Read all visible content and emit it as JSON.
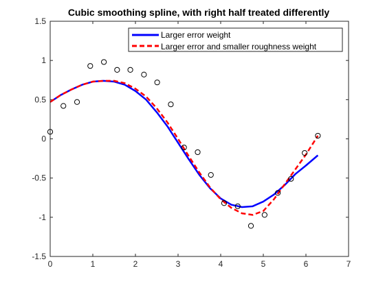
{
  "chart_data": {
    "type": "line",
    "title": "Cubic smoothing spline, with right half treated differently",
    "xlabel": "",
    "ylabel": "",
    "xlim": [
      0,
      7
    ],
    "ylim": [
      -1.5,
      1.5
    ],
    "xticks": [
      0,
      1,
      2,
      3,
      4,
      5,
      6,
      7
    ],
    "xtick_labels": [
      "0",
      "1",
      "2",
      "3",
      "4",
      "5",
      "6",
      "7"
    ],
    "yticks": [
      -1.5,
      -1,
      -0.5,
      0,
      0.5,
      1,
      1.5
    ],
    "ytick_labels": [
      "-1.5",
      "-1",
      "-0.5",
      "0",
      "0.5",
      "1",
      "1.5"
    ],
    "grid": false,
    "legend_position": "top-right",
    "data_points": {
      "marker": "circle-open",
      "x": [
        0.0,
        0.31,
        0.63,
        0.94,
        1.26,
        1.57,
        1.88,
        2.2,
        2.51,
        2.83,
        3.14,
        3.46,
        3.77,
        4.08,
        4.4,
        4.71,
        5.03,
        5.34,
        5.65,
        5.97,
        6.28
      ],
      "y": [
        0.09,
        0.42,
        0.47,
        0.93,
        0.98,
        0.88,
        0.88,
        0.82,
        0.72,
        0.44,
        -0.11,
        -0.17,
        -0.46,
        -0.82,
        -0.86,
        -1.11,
        -0.97,
        -0.69,
        -0.51,
        -0.18,
        0.04
      ]
    },
    "series": [
      {
        "name": "Larger error weight",
        "color": "#0000ff",
        "style": "solid",
        "x": [
          0.0,
          0.25,
          0.5,
          0.75,
          1.0,
          1.25,
          1.5,
          1.75,
          2.0,
          2.25,
          2.5,
          2.75,
          3.0,
          3.25,
          3.5,
          3.75,
          4.0,
          4.25,
          4.5,
          4.75,
          5.0,
          5.25,
          5.5,
          5.75,
          6.0,
          6.28
        ],
        "y": [
          0.47,
          0.56,
          0.63,
          0.69,
          0.73,
          0.74,
          0.73,
          0.69,
          0.61,
          0.5,
          0.34,
          0.16,
          -0.05,
          -0.26,
          -0.46,
          -0.63,
          -0.76,
          -0.84,
          -0.87,
          -0.86,
          -0.8,
          -0.71,
          -0.59,
          -0.45,
          -0.34,
          -0.21
        ]
      },
      {
        "name": "Larger error and smaller roughness weight",
        "color": "#ff0000",
        "style": "dashed",
        "x": [
          0.0,
          0.25,
          0.5,
          0.75,
          1.0,
          1.25,
          1.5,
          1.75,
          2.0,
          2.25,
          2.5,
          2.75,
          3.0,
          3.25,
          3.5,
          3.75,
          4.0,
          4.25,
          4.5,
          4.75,
          5.0,
          5.25,
          5.5,
          5.75,
          6.0,
          6.28
        ],
        "y": [
          0.47,
          0.56,
          0.63,
          0.69,
          0.73,
          0.74,
          0.74,
          0.71,
          0.64,
          0.54,
          0.39,
          0.21,
          0.0,
          -0.22,
          -0.43,
          -0.62,
          -0.77,
          -0.88,
          -0.95,
          -0.97,
          -0.92,
          -0.77,
          -0.58,
          -0.39,
          -0.2,
          0.04
        ]
      }
    ]
  }
}
